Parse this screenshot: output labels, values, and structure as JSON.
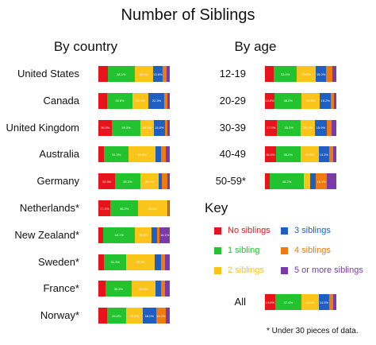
{
  "chart_data": {
    "type": "stacked-bar",
    "title": "Number of Siblings",
    "colors": [
      "#e8141b",
      "#22c32e",
      "#fbc41a",
      "#1f5fc2",
      "#f07a0b",
      "#7a3aa8"
    ],
    "key": {
      "heading": "Key",
      "items": [
        "No siblings",
        "1 sibling",
        "2 siblings",
        "3 siblings",
        "4 siblings",
        "5 or more siblings"
      ]
    },
    "footnote": "*  Under 30 pieces of data.",
    "panels": [
      {
        "name": "By country",
        "rows": [
          {
            "label": "United States",
            "values": [
              13.0,
              38.1,
              25.1,
              13.8,
              6.0,
              4.0
            ]
          },
          {
            "label": "Canada",
            "values": [
              12.6,
              34.8,
              23.1,
              22.3,
              4.0,
              3.2
            ]
          },
          {
            "label": "United Kingdom",
            "values": [
              19.3,
              39.3,
              19.3,
              15.0,
              3.8,
              3.3
            ]
          },
          {
            "label": "Australia",
            "values": [
              8.0,
              34.3,
              37.6,
              8.2,
              5.9,
              6.0
            ]
          },
          {
            "label": "Germany",
            "values": [
              23.3,
              35.3,
              26.1,
              4.3,
              7.3,
              3.7
            ]
          },
          {
            "label": "Netherlands*",
            "values": [
              17.2,
              38.2,
              41.4,
              1.0,
              1.1,
              1.1
            ]
          },
          {
            "label": "New Zealand*",
            "values": [
              7.0,
              44.1,
              23.8,
              7.0,
              4.0,
              14.1
            ]
          },
          {
            "label": "Sweden*",
            "values": [
              8.0,
              31.3,
              39.9,
              8.3,
              6.0,
              6.5
            ]
          },
          {
            "label": "France*",
            "values": [
              10.1,
              36.3,
              33.4,
              7.5,
              6.4,
              6.3
            ]
          },
          {
            "label": "Norway*",
            "values": [
              12.0,
              26.6,
              24.0,
              18.0,
              14.0,
              5.4
            ]
          }
        ]
      },
      {
        "name": "By age",
        "rows": [
          {
            "label": "12-19",
            "values": [
              12.0,
              33.0,
              26.0,
              15.0,
              8.0,
              6.0
            ]
          },
          {
            "label": "20-29",
            "values": [
              13.5,
              38.0,
              25.6,
              15.2,
              4.5,
              3.2
            ]
          },
          {
            "label": "30-39",
            "values": [
              17.0,
              33.2,
              20.1,
              15.9,
              7.5,
              6.3
            ]
          },
          {
            "label": "40-49",
            "values": [
              15.0,
              35.0,
              25.5,
              14.2,
              6.0,
              4.3
            ]
          },
          {
            "label": "50-59*",
            "values": [
              6.6,
              48.2,
              8.4,
              8.4,
              15.1,
              13.3
            ]
          }
        ]
      }
    ],
    "total": {
      "label": "All",
      "values": [
        14.0,
        37.6,
        24.0,
        14.5,
        6.0,
        3.9
      ]
    }
  }
}
